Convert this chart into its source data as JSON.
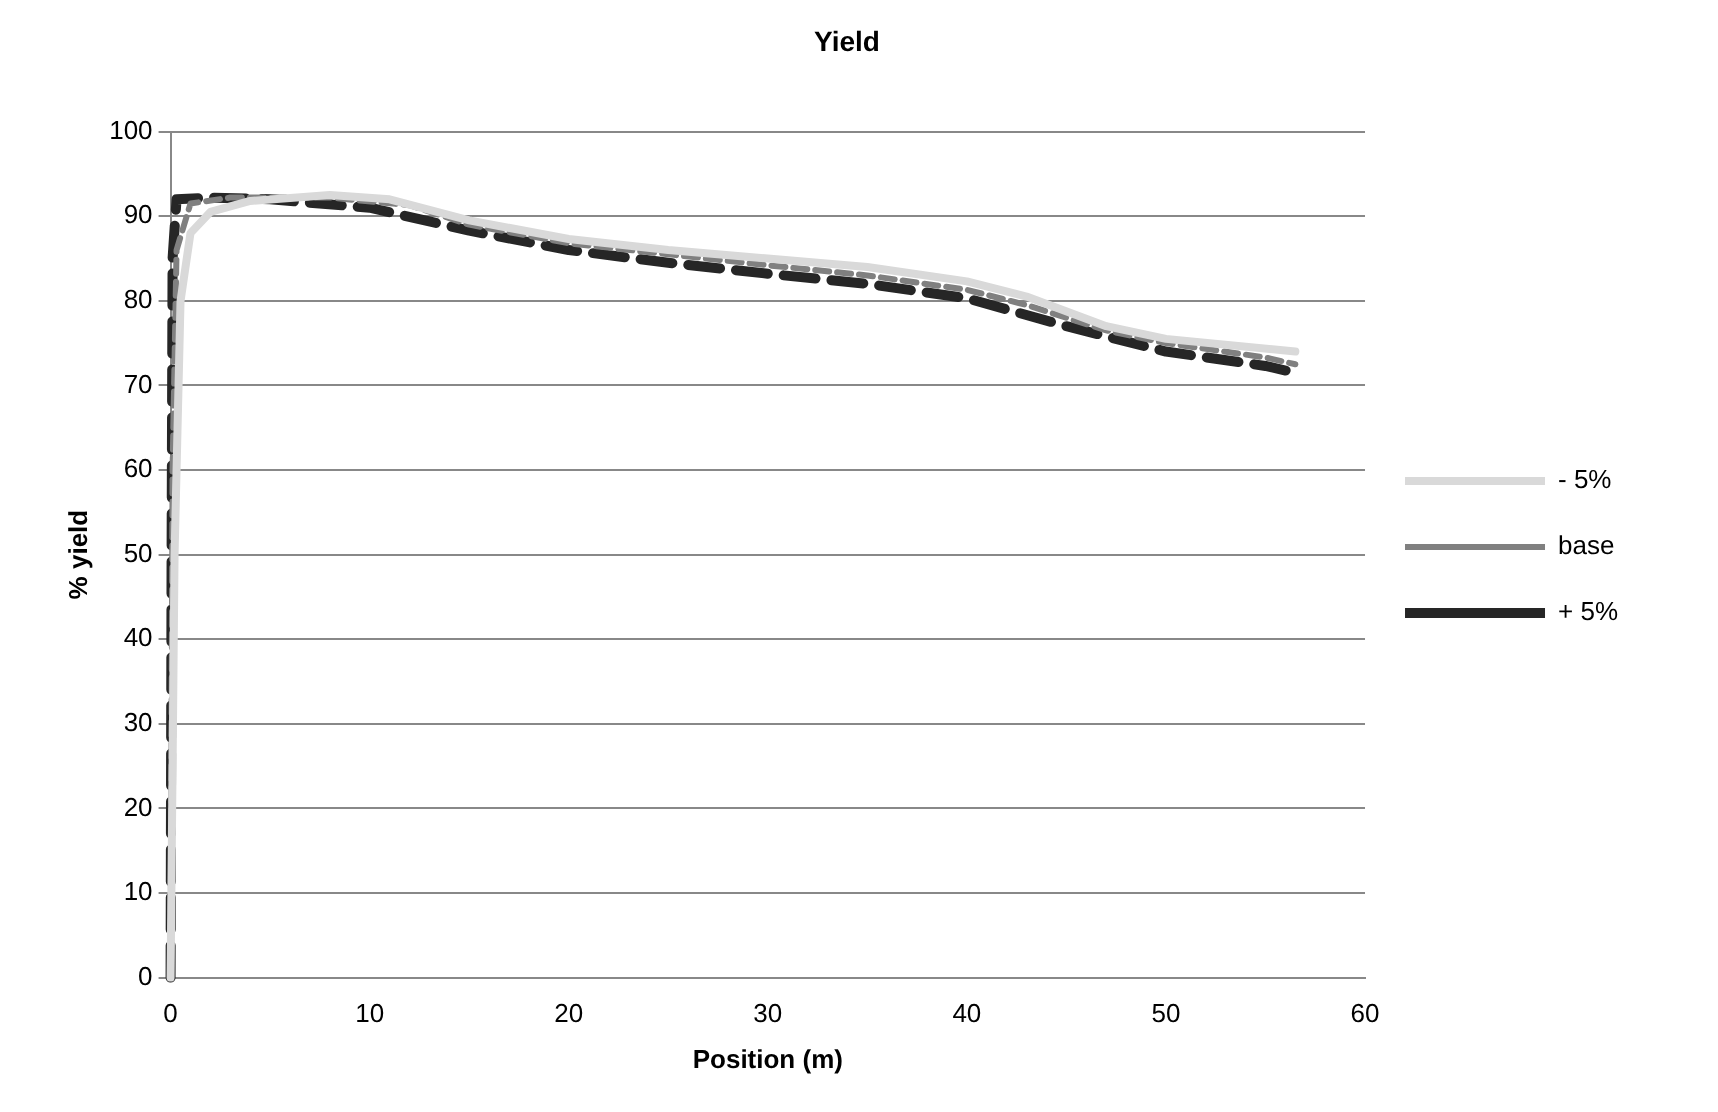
{
  "chart_data": {
    "type": "line",
    "title": "Yield",
    "xlabel": "Position (m)",
    "ylabel": "% yield",
    "xlim": [
      0,
      60
    ],
    "xticks": [
      0,
      10,
      20,
      30,
      40,
      50,
      60
    ],
    "ylim": [
      0,
      100
    ],
    "yticks": [
      0,
      10,
      20,
      30,
      40,
      50,
      60,
      70,
      80,
      90,
      100
    ],
    "grid": "y",
    "legend": "right",
    "marker": "none",
    "series": [
      {
        "name": "- 5%",
        "color": "#d9d9d9",
        "line_style": "solid",
        "x": [
          0,
          0.2,
          0.5,
          1,
          2,
          4,
          8,
          11,
          15,
          20,
          25,
          30,
          35,
          40,
          43,
          47,
          50,
          56.5
        ],
        "values": [
          0,
          50,
          80,
          88,
          90.5,
          91.8,
          92.5,
          92,
          89.5,
          87.3,
          86,
          85,
          84,
          82.3,
          80.5,
          77,
          75.5,
          74
        ]
      },
      {
        "name": "base",
        "color": "#808080",
        "line_style": "dashed",
        "x": [
          0,
          0.1,
          0.3,
          1,
          3,
          8,
          12,
          15,
          20,
          25,
          30,
          35,
          40,
          43,
          47,
          50,
          55,
          56.5
        ],
        "values": [
          0,
          60,
          86,
          91.5,
          92.2,
          92.2,
          91.3,
          89,
          86.8,
          85.5,
          84.2,
          83,
          81.3,
          79.5,
          76.5,
          75,
          73.3,
          72.5
        ]
      },
      {
        "name": "+ 5%",
        "color": "#262626",
        "line_style": "dashed",
        "x": [
          0,
          0.05,
          0.1,
          0.3,
          2,
          5,
          10,
          15,
          20,
          25,
          30,
          35,
          40,
          45,
          50,
          55,
          56.5
        ],
        "values": [
          0,
          50,
          85,
          92,
          92.2,
          92,
          91,
          88.3,
          86,
          84.5,
          83.2,
          82,
          80.3,
          77,
          74,
          72.3,
          71.5
        ]
      }
    ]
  }
}
